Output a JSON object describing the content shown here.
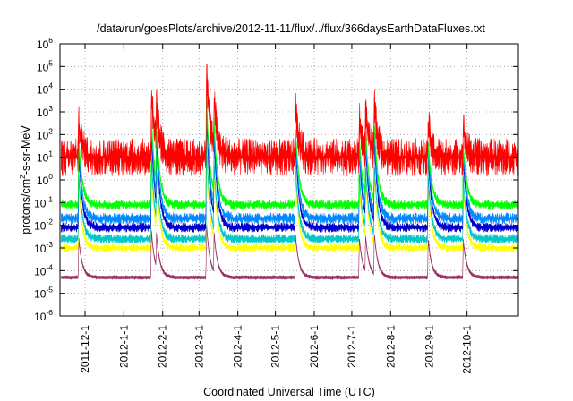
{
  "chart_data": {
    "type": "line",
    "title": "/data/run/goesPlots/archive/2012-11-11/flux/../flux/366daysEarthDataFluxes.txt",
    "xlabel": "Coordinated Universal Time (UTC)",
    "ylabel": {
      "base": "protons/cm",
      "exp": "2",
      "rest": "-s-sr-MeV"
    },
    "yscale": "log",
    "ylim": [
      1e-06,
      1000000.0
    ],
    "xlim": [
      "2011-11-11",
      "2012-11-11"
    ],
    "grid": true,
    "yticks": [
      {
        "value": 1e-06,
        "base": "10",
        "exp": "-6"
      },
      {
        "value": 1e-05,
        "base": "10",
        "exp": "-5"
      },
      {
        "value": 0.0001,
        "base": "10",
        "exp": "-4"
      },
      {
        "value": 0.001,
        "base": "10",
        "exp": "-3"
      },
      {
        "value": 0.01,
        "base": "10",
        "exp": "-2"
      },
      {
        "value": 0.1,
        "base": "10",
        "exp": "-1"
      },
      {
        "value": 1,
        "base": "10",
        "exp": "0"
      },
      {
        "value": 10,
        "base": "10",
        "exp": "1"
      },
      {
        "value": 100,
        "base": "10",
        "exp": "2"
      },
      {
        "value": 1000,
        "base": "10",
        "exp": "3"
      },
      {
        "value": 10000,
        "base": "10",
        "exp": "4"
      },
      {
        "value": 100000,
        "base": "10",
        "exp": "5"
      },
      {
        "value": 1000000,
        "base": "10",
        "exp": "6"
      }
    ],
    "xticks": [
      {
        "date": "2011-12-01",
        "label": "2011-12-1"
      },
      {
        "date": "2012-01-01",
        "label": "2012-1-1"
      },
      {
        "date": "2012-02-01",
        "label": "2012-2-1"
      },
      {
        "date": "2012-03-01",
        "label": "2012-3-1"
      },
      {
        "date": "2012-04-01",
        "label": "2012-4-1"
      },
      {
        "date": "2012-05-01",
        "label": "2012-5-1"
      },
      {
        "date": "2012-06-01",
        "label": "2012-6-1"
      },
      {
        "date": "2012-07-01",
        "label": "2012-7-1"
      },
      {
        "date": "2012-08-01",
        "label": "2012-8-1"
      },
      {
        "date": "2012-09-01",
        "label": "2012-9-1"
      },
      {
        "date": "2012-10-01",
        "label": "2012-10-1"
      }
    ],
    "series": [
      {
        "color": "#993366",
        "baseline": 5e-05,
        "noise": 0.12,
        "spike_scale": 0.25
      },
      {
        "color": "#ffff00",
        "baseline": 0.001,
        "noise": 0.25,
        "spike_scale": 0.5
      },
      {
        "color": "#00c8c8",
        "baseline": 0.0025,
        "noise": 0.3,
        "spike_scale": 0.55
      },
      {
        "color": "#0000cc",
        "baseline": 0.008,
        "noise": 0.3,
        "spike_scale": 0.7
      },
      {
        "color": "#0088ff",
        "baseline": 0.02,
        "noise": 0.35,
        "spike_scale": 0.75
      },
      {
        "color": "#00ff00",
        "baseline": 0.08,
        "noise": 0.3,
        "spike_scale": 0.8
      },
      {
        "color": "#ff0000",
        "baseline": 10,
        "noise": 1.2,
        "spike_scale": 1.0
      }
    ],
    "events": [
      {
        "date": "2011-11-26",
        "peak": 400
      },
      {
        "date": "2012-01-23",
        "peak": 10000
      },
      {
        "date": "2012-01-27",
        "peak": 3000
      },
      {
        "date": "2012-03-07",
        "peak": 100000
      },
      {
        "date": "2012-03-13",
        "peak": 5000
      },
      {
        "date": "2012-05-17",
        "peak": 2000
      },
      {
        "date": "2012-07-07",
        "peak": 500
      },
      {
        "date": "2012-07-12",
        "peak": 1500
      },
      {
        "date": "2012-07-19",
        "peak": 3000
      },
      {
        "date": "2012-08-31",
        "peak": 300
      },
      {
        "date": "2012-09-28",
        "peak": 200
      }
    ]
  }
}
